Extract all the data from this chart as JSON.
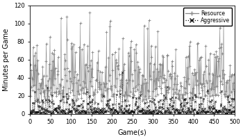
{
  "title": "",
  "xlabel": "Game(s)",
  "ylabel": "Minutes per Game",
  "xlim": [
    0,
    500
  ],
  "ylim": [
    0,
    120
  ],
  "xticks": [
    0,
    50,
    100,
    150,
    200,
    250,
    300,
    350,
    400,
    450,
    500
  ],
  "yticks": [
    0,
    20,
    40,
    60,
    80,
    100,
    120
  ],
  "n_games": 500,
  "resource_color": "#888888",
  "aggressive_color": "#111111",
  "resource_label": "Resource",
  "aggressive_label": "Aggressive",
  "seed": 7
}
